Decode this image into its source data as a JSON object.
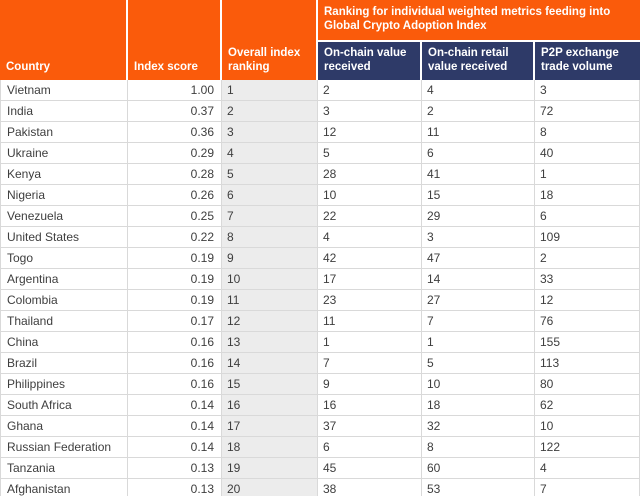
{
  "title": "Global Crypto Adoption Index ranking table",
  "colors": {
    "header_orange": "#FA5B0B",
    "header_navy": "#2E3A68",
    "ranking_column_bg": "#ECECEC",
    "grid_border": "#D9D9D9",
    "body_text": "#3E3E3E",
    "header_text": "#FFFFFF"
  },
  "chart_data": {
    "type": "table",
    "columns": [
      "Country",
      "Index score",
      "Overall index ranking",
      "On-chain value received",
      "On-chain retail value received",
      "P2P exchange trade volume"
    ],
    "column_group": {
      "label": "Ranking for individual weighted metrics feeding into Global Crypto Adoption Index",
      "spans": [
        "On-chain value received",
        "On-chain retail value received",
        "P2P exchange trade volume"
      ]
    },
    "rows": [
      {
        "country": "Vietnam",
        "index_score": "1.00",
        "overall_rank": "1",
        "on_chain_value_rank": "2",
        "on_chain_retail_rank": "4",
        "p2p_rank": "3"
      },
      {
        "country": "India",
        "index_score": "0.37",
        "overall_rank": "2",
        "on_chain_value_rank": "3",
        "on_chain_retail_rank": "2",
        "p2p_rank": "72"
      },
      {
        "country": "Pakistan",
        "index_score": "0.36",
        "overall_rank": "3",
        "on_chain_value_rank": "12",
        "on_chain_retail_rank": "11",
        "p2p_rank": "8"
      },
      {
        "country": "Ukraine",
        "index_score": "0.29",
        "overall_rank": "4",
        "on_chain_value_rank": "5",
        "on_chain_retail_rank": "6",
        "p2p_rank": "40"
      },
      {
        "country": "Kenya",
        "index_score": "0.28",
        "overall_rank": "5",
        "on_chain_value_rank": "28",
        "on_chain_retail_rank": "41",
        "p2p_rank": "1"
      },
      {
        "country": "Nigeria",
        "index_score": "0.26",
        "overall_rank": "6",
        "on_chain_value_rank": "10",
        "on_chain_retail_rank": "15",
        "p2p_rank": "18"
      },
      {
        "country": "Venezuela",
        "index_score": "0.25",
        "overall_rank": "7",
        "on_chain_value_rank": "22",
        "on_chain_retail_rank": "29",
        "p2p_rank": "6"
      },
      {
        "country": "United States",
        "index_score": "0.22",
        "overall_rank": "8",
        "on_chain_value_rank": "4",
        "on_chain_retail_rank": "3",
        "p2p_rank": "109"
      },
      {
        "country": "Togo",
        "index_score": "0.19",
        "overall_rank": "9",
        "on_chain_value_rank": "42",
        "on_chain_retail_rank": "47",
        "p2p_rank": "2"
      },
      {
        "country": "Argentina",
        "index_score": "0.19",
        "overall_rank": "10",
        "on_chain_value_rank": "17",
        "on_chain_retail_rank": "14",
        "p2p_rank": "33"
      },
      {
        "country": "Colombia",
        "index_score": "0.19",
        "overall_rank": "11",
        "on_chain_value_rank": "23",
        "on_chain_retail_rank": "27",
        "p2p_rank": "12"
      },
      {
        "country": "Thailand",
        "index_score": "0.17",
        "overall_rank": "12",
        "on_chain_value_rank": "11",
        "on_chain_retail_rank": "7",
        "p2p_rank": "76"
      },
      {
        "country": "China",
        "index_score": "0.16",
        "overall_rank": "13",
        "on_chain_value_rank": "1",
        "on_chain_retail_rank": "1",
        "p2p_rank": "155"
      },
      {
        "country": "Brazil",
        "index_score": "0.16",
        "overall_rank": "14",
        "on_chain_value_rank": "7",
        "on_chain_retail_rank": "5",
        "p2p_rank": "113"
      },
      {
        "country": "Philippines",
        "index_score": "0.16",
        "overall_rank": "15",
        "on_chain_value_rank": "9",
        "on_chain_retail_rank": "10",
        "p2p_rank": "80"
      },
      {
        "country": "South Africa",
        "index_score": "0.14",
        "overall_rank": "16",
        "on_chain_value_rank": "16",
        "on_chain_retail_rank": "18",
        "p2p_rank": "62"
      },
      {
        "country": "Ghana",
        "index_score": "0.14",
        "overall_rank": "17",
        "on_chain_value_rank": "37",
        "on_chain_retail_rank": "32",
        "p2p_rank": "10"
      },
      {
        "country": "Russian Federation",
        "index_score": "0.14",
        "overall_rank": "18",
        "on_chain_value_rank": "6",
        "on_chain_retail_rank": "8",
        "p2p_rank": "122"
      },
      {
        "country": "Tanzania",
        "index_score": "0.13",
        "overall_rank": "19",
        "on_chain_value_rank": "45",
        "on_chain_retail_rank": "60",
        "p2p_rank": "4"
      },
      {
        "country": "Afghanistan",
        "index_score": "0.13",
        "overall_rank": "20",
        "on_chain_value_rank": "38",
        "on_chain_retail_rank": "53",
        "p2p_rank": "7"
      }
    ]
  }
}
